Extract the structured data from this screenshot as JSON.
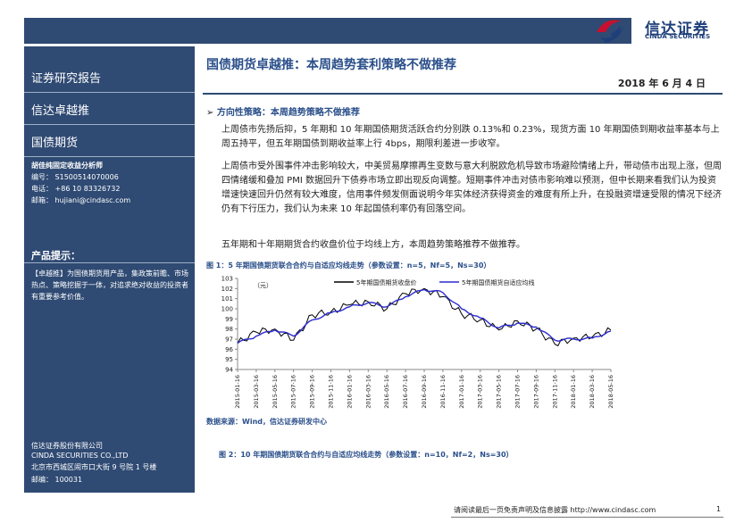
{
  "logo": {
    "name_cn": "信达证券",
    "name_en": "CINDA SECURITIES",
    "colors": {
      "red": "#c8102e",
      "blue": "#1e3f7a"
    }
  },
  "sidebar": {
    "report_type": "证券研究报告",
    "series_name": "信达卓越推",
    "category": "国债期货",
    "analyst_title": "胡佳纯固定收益分析师",
    "analyst_id": "编号： S1500514070006",
    "phone": "电话： +86 10 83326732",
    "email": "邮箱： hujiani@cindasc.com",
    "tips_title": "产品提示：",
    "tips_text": "【卓越推】为国债期货用产品，集政策前瞻、市场热点、策略挖掘于一体，对追求绝对收益的投资者有重要参考价值。",
    "company_cn": "信达证券股份有限公司",
    "company_en": "CINDA SECURITIES CO.,LTD",
    "address": "北京市西城区闹市口大街 9 号院 1 号楼",
    "postcode": "邮编： 100031"
  },
  "header": {
    "title": "国债期货卓越推：本周趋势套利策略不做推荐",
    "date": "2018 年 6 月 4 日"
  },
  "section": {
    "heading": "方向性策略：本周趋势策略不做推荐"
  },
  "paragraphs": [
    "上周债市先扬后抑，5 年期和 10 年期国债期货活跃合约分别跌 0.13%和 0.23%，现货方面 10 年期国债到期收益率基本与上周五持平，但五年期国债到期收益率上行 4bps，期限利差进一步收窄。",
    "上周债市受外围事件冲击影响较大，中美贸易摩擦再生变数与意大利脱欧危机导致市场避险情绪上升，带动债市出现上涨，但周四情绪缓和叠加 PMI 数据回升下债券市场立即出现反向调整。短期事件冲击对债市影响难以预测，但中长期来看我们认为投资增速快速回升仍然有较大难度，信用事件频发侧面说明今年实体经济获得资金的难度有所上升，在投融资增速受限的情况下经济仍有下行压力，我们认为未来 10 年起国债利率仍有回落空间。",
    "五年期和十年期期货合约收盘价位于均线上方，本周趋势策略推荐不做推荐。"
  ],
  "figure1": {
    "caption": "图 1：5 年期国债期货联合合约与自适应均线走势（参数设置：n=5，Nf=5，Ns=30）"
  },
  "figure2": {
    "caption": "图 2：10 年期国债期货联合合约与自适应均线走势（参数设置：n=10，Nf=2，Ns=30）"
  },
  "source": "数据来源：Wind，信达证券研发中心",
  "footer": {
    "disclaimer": "请阅读最后一页免责声明及信息披露 http://www.cindasc.com",
    "page": "1"
  },
  "chart_data": {
    "type": "line",
    "ylabel": "（元）",
    "ylim": [
      94,
      103
    ],
    "yticks": [
      94,
      95,
      96,
      97,
      98,
      99,
      100,
      101,
      102,
      103
    ],
    "categories": [
      "2015-01-16",
      "2015-03-16",
      "2015-05-16",
      "2015-07-16",
      "2015-09-16",
      "2015-11-16",
      "2016-01-16",
      "2016-03-16",
      "2016-05-16",
      "2016-07-16",
      "2016-09-16",
      "2016-11-16",
      "2017-01-16",
      "2017-03-16",
      "2017-05-16",
      "2017-07-16",
      "2017-09-16",
      "2017-11-16",
      "2018-01-16",
      "2018-03-16",
      "2018-05-16"
    ],
    "series": [
      {
        "name": "5年期国债期货收盘价",
        "color": "#000000",
        "values": [
          96.6,
          97.7,
          98.0,
          96.9,
          99.4,
          99.7,
          100.4,
          100.7,
          100.0,
          101.5,
          102.0,
          101.2,
          99.5,
          98.9,
          97.9,
          98.8,
          98.0,
          96.5,
          97.1,
          97.2,
          97.9
        ]
      },
      {
        "name": "5年期国债期货自适应均线",
        "color": "#2b2bd0",
        "values": [
          96.6,
          97.3,
          97.9,
          97.3,
          98.9,
          99.6,
          100.2,
          100.6,
          100.2,
          101.2,
          101.9,
          101.6,
          100.0,
          99.1,
          98.1,
          98.6,
          98.2,
          96.9,
          97.0,
          97.1,
          97.8
        ]
      }
    ]
  }
}
